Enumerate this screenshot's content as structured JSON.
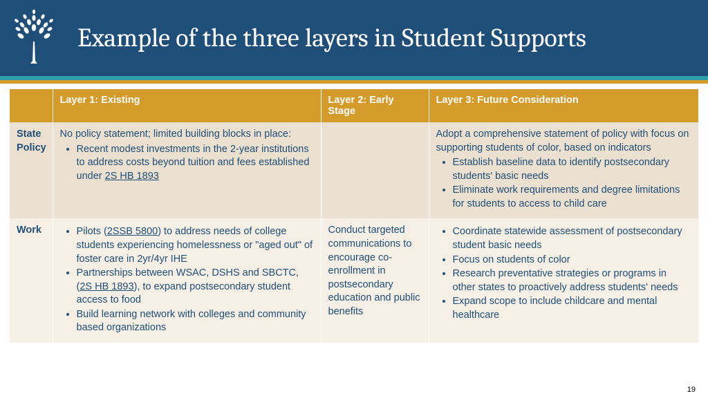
{
  "header": {
    "title": "Example of the three layers in Student Supports",
    "bg": "#1f4e79",
    "stripe1": "#2f9ea8",
    "stripe2": "#d49a2a"
  },
  "table": {
    "header_bg": "#d49a2a",
    "header_fg": "#ffffff",
    "row_bg_0": "#ece0d0",
    "row_bg_1": "#f5efe6",
    "text_color": "#1f4e79",
    "columns": [
      "",
      "Layer 1: Existing",
      "Layer 2: Early Stage",
      "Layer 3: Future Consideration"
    ],
    "rows": [
      {
        "head": "State Policy",
        "c1_intro": "No policy statement; limited building blocks in place:",
        "c1_bullets": [
          "Recent modest investments in the 2-year institutions to address costs beyond tuition and fees established under <span class='u'>2S HB 1893</span>"
        ],
        "c2_text": "",
        "c3_intro": "Adopt a comprehensive statement of policy with focus on supporting students of color, based on indicators",
        "c3_bullets": [
          "Establish baseline data to identify postsecondary students' basic needs",
          "Eliminate work requirements and degree limitations for students to access to child care"
        ]
      },
      {
        "head": "Work",
        "c1_intro": "",
        "c1_bullets": [
          "Pilots (<span class='u'>2SSB 5800</span>) to address needs of college students experiencing homelessness or \"aged out\" of foster care in 2yr/4yr IHE",
          "Partnerships between WSAC, DSHS and SBCTC, (<span class='u'>2S HB 1893</span>), to expand postsecondary student access to food",
          "Build learning network with colleges and community based organizations"
        ],
        "c2_text": "Conduct targeted communications to encourage co-enrollment in postsecondary education and public benefits",
        "c3_intro": "",
        "c3_bullets": [
          "Coordinate statewide assessment of postsecondary student basic needs",
          "Focus on students of color",
          "Research preventative strategies or programs in other states to proactively address students' needs",
          "Expand scope to include childcare and mental healthcare"
        ]
      }
    ]
  },
  "page_number": "19"
}
